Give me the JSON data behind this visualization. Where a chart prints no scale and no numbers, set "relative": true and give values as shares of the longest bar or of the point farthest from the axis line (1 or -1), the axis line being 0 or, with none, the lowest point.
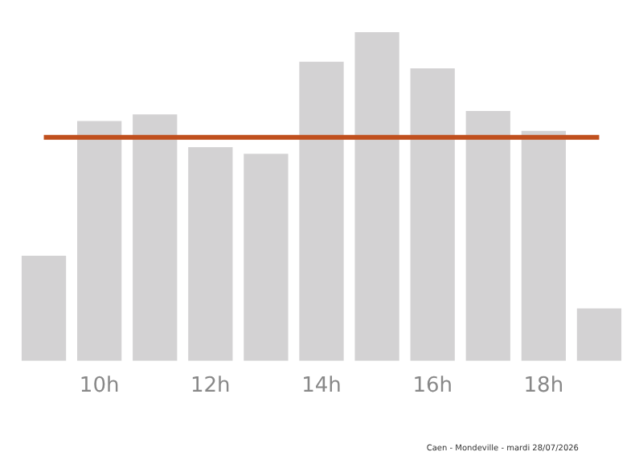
{
  "chart_data": {
    "type": "bar",
    "relative": true,
    "categories": [
      null,
      "10h",
      null,
      "12h",
      null,
      "14h",
      null,
      "16h",
      null,
      "18h",
      null
    ],
    "values": [
      0.32,
      0.73,
      0.75,
      0.65,
      0.63,
      0.91,
      1,
      0.89,
      0.76,
      0.7,
      0.16
    ],
    "color": "#d3d2d3",
    "ref_lines": [
      {
        "axis": "y",
        "value": 0.68,
        "color": "#c0501e",
        "line_style": "solid"
      }
    ],
    "grid": false,
    "legend": false,
    "annotations": [
      "Caen - Mondeville - mardi 28/07/2026"
    ]
  }
}
